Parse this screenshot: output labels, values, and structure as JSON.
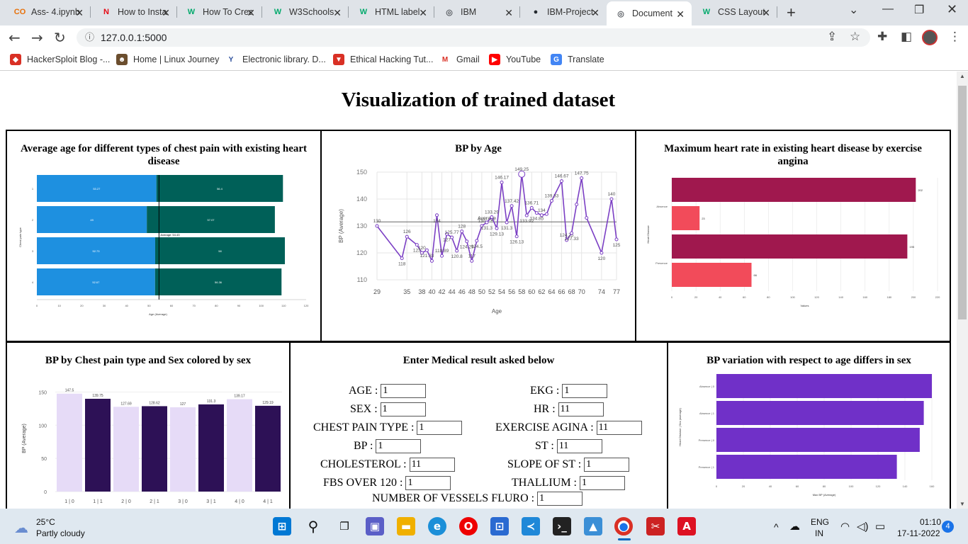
{
  "browser": {
    "tabs": [
      {
        "title": "Ass- 4.ipynb",
        "icon": "colab-icon",
        "color": "#e8710a",
        "glyph": "CO"
      },
      {
        "title": "How to Install",
        "icon": "netflix-icon",
        "color": "#e50914",
        "glyph": "N"
      },
      {
        "title": "How To Create",
        "icon": "w3schools-icon",
        "color": "#04aa6d",
        "glyph": "W"
      },
      {
        "title": "W3Schools",
        "icon": "w3schools-icon",
        "color": "#04aa6d",
        "glyph": "W"
      },
      {
        "title": "HTML label",
        "icon": "w3schools-icon",
        "color": "#04aa6d",
        "glyph": "W"
      },
      {
        "title": "IBM",
        "icon": "globe-icon",
        "color": "#5f6368",
        "glyph": "◎"
      },
      {
        "title": "IBM-Project",
        "icon": "github-icon",
        "color": "#24292f",
        "glyph": "●"
      },
      {
        "title": "Document",
        "icon": "globe-icon",
        "color": "#5f6368",
        "glyph": "◎"
      },
      {
        "title": "CSS Layout",
        "icon": "w3schools-icon",
        "color": "#04aa6d",
        "glyph": "W"
      }
    ],
    "active_tab": 7,
    "url": "127.0.0.1:5000",
    "bookmarks": [
      {
        "label": "HackerSploit Blog -...",
        "color": "#d93025",
        "glyph": "◆"
      },
      {
        "label": "Home | Linux Journey",
        "color": "#6b4e2e",
        "glyph": "☻"
      },
      {
        "label": "Electronic library. D...",
        "color": "#ffffff",
        "glyph": "Y"
      },
      {
        "label": "Ethical Hacking Tut...",
        "color": "#d93025",
        "glyph": "▼"
      },
      {
        "label": "Gmail",
        "color": "#ffffff",
        "glyph": "M"
      },
      {
        "label": "YouTube",
        "color": "#ff0000",
        "glyph": "▶"
      },
      {
        "label": "Translate",
        "color": "#4285f4",
        "glyph": "G"
      }
    ]
  },
  "page": {
    "title": "Visualization of trained dataset",
    "form_title": "Enter Medical result asked below",
    "form": {
      "age_label": "AGE :",
      "age": "1",
      "sex_label": "SEX :",
      "sex": "1",
      "cp_label": "CHEST PAIN TYPE :",
      "cp": "1",
      "bp_label": "BP :",
      "bp": "1",
      "chol_label": "CHOLESTEROL :",
      "chol": "11",
      "fbs_label": "FBS OVER 120 :",
      "fbs": "1",
      "ekg_label": "EKG :",
      "ekg": "1",
      "hr_label": "HR :",
      "hr": "11",
      "ea_label": "EXERCISE AGINA :",
      "ea": "11",
      "st_label": "ST :",
      "st": "11",
      "slope_label": "SLOPE OF ST :",
      "slope": "1",
      "thal_label": "THALLIUM :",
      "thal": "1",
      "vessels_label": "NUMBER OF VESSELS FLURO :",
      "vessels": "1"
    }
  },
  "chart_data": [
    {
      "type": "bar",
      "orientation": "horizontal",
      "stacked": true,
      "title": "Average age for different types of chest pain with existing heart disease",
      "ylabel": "Chest pain type",
      "xlabel": "Age (Average)",
      "categories": [
        "1",
        "2",
        "3",
        "4"
      ],
      "series": [
        {
          "name": "Absence",
          "color": "#1e90e0",
          "values": [
            53.27,
            49,
            52.73,
            52.67
          ]
        },
        {
          "name": "Presence",
          "color": "#006058",
          "values": [
            56.4,
            57.07,
            57.8,
            56.36
          ]
        }
      ],
      "value_labels": [
        [
          "53.27",
          "56.4"
        ],
        [
          "49",
          "57.07"
        ],
        [
          "52.73",
          "58"
        ],
        [
          "52.67",
          "56.36"
        ]
      ],
      "reference_line": {
        "label": "Average: 54.43",
        "value": 54.43
      },
      "xlim": [
        0,
        120
      ],
      "x_ticks": [
        "0",
        "10",
        "20",
        "30",
        "40",
        "50",
        "60",
        "70",
        "80",
        "90",
        "100",
        "110",
        "120"
      ]
    },
    {
      "type": "line",
      "title": "BP by Age",
      "xlabel": "Age",
      "ylabel": "BP (Average)",
      "color": "#7b3fc4",
      "ylim": [
        110,
        150
      ],
      "y_ticks": [
        110,
        120,
        130,
        140,
        150
      ],
      "x_tick_labels": [
        "29",
        "35",
        "38",
        "40",
        "42",
        "44",
        "46",
        "48",
        "50",
        "52",
        "54",
        "56",
        "58",
        "60",
        "62",
        "64",
        "66",
        "68",
        "70",
        "74",
        "77"
      ],
      "points": [
        {
          "x": 29,
          "y": 130,
          "label": "130"
        },
        {
          "x": 34,
          "y": 118,
          "label": "118"
        },
        {
          "x": 35,
          "y": 126,
          "label": "126"
        },
        {
          "x": 37,
          "y": 123,
          "label": "123"
        },
        {
          "x": 38,
          "y": 120,
          "label": "120"
        },
        {
          "x": 39,
          "y": 121,
          "label": "121.33"
        },
        {
          "x": 40,
          "y": 117,
          "label": ""
        },
        {
          "x": 41,
          "y": 134,
          "label": "134"
        },
        {
          "x": 42,
          "y": 118.89,
          "label": "118.89"
        },
        {
          "x": 43,
          "y": 127,
          "label": "127"
        },
        {
          "x": 44,
          "y": 125.77,
          "label": "125.77"
        },
        {
          "x": 45,
          "y": 120.8,
          "label": "120.8"
        },
        {
          "x": 46,
          "y": 128,
          "label": "128"
        },
        {
          "x": 47,
          "y": 124.29,
          "label": "124.29"
        },
        {
          "x": 48,
          "y": 117,
          "label": "117"
        },
        {
          "x": 49,
          "y": 124.5,
          "label": "124.5"
        },
        {
          "x": 50,
          "y": 130,
          "label": "130"
        },
        {
          "x": 51,
          "y": 131.3,
          "label": "131.3"
        },
        {
          "x": 52,
          "y": 133.29,
          "label": "133.29"
        },
        {
          "x": 53,
          "y": 129.13,
          "label": "129.13"
        },
        {
          "x": 54,
          "y": 146.17,
          "label": "146.17"
        },
        {
          "x": 55,
          "y": 131.3,
          "label": "131.3"
        },
        {
          "x": 56,
          "y": 137.42,
          "label": "137.42"
        },
        {
          "x": 57,
          "y": 126.13,
          "label": "126.13"
        },
        {
          "x": 58,
          "y": 149.25,
          "label": "149.25"
        },
        {
          "x": 59,
          "y": 133.92,
          "label": "133.92"
        },
        {
          "x": 60,
          "y": 136.71,
          "label": "136.71"
        },
        {
          "x": 61,
          "y": 134.85,
          "label": "134.85"
        },
        {
          "x": 62,
          "y": 134,
          "label": "134"
        },
        {
          "x": 63,
          "y": 134.4,
          "label": ""
        },
        {
          "x": 64,
          "y": 139.33,
          "label": "139.33"
        },
        {
          "x": 66,
          "y": 146.67,
          "label": "146.67"
        },
        {
          "x": 67,
          "y": 124.75,
          "label": "124.75"
        },
        {
          "x": 68,
          "y": 127.33,
          "label": "127.33"
        },
        {
          "x": 69,
          "y": 138,
          "label": ""
        },
        {
          "x": 70,
          "y": 147.75,
          "label": "147.75"
        },
        {
          "x": 71,
          "y": 133,
          "label": ""
        },
        {
          "x": 74,
          "y": 120,
          "label": "120"
        },
        {
          "x": 76,
          "y": 140,
          "label": "140"
        },
        {
          "x": 77,
          "y": 125,
          "label": "125"
        }
      ],
      "reference_line": {
        "label": "Average",
        "value": 131.5
      }
    },
    {
      "type": "bar",
      "orientation": "horizontal",
      "title": "Maximum heart rate in existing heart disease by exercise angina",
      "ylabel": "Heart Disease",
      "xlabel": "Values",
      "categories": [
        "Absence",
        "Presence"
      ],
      "series": [
        {
          "name": "Max HR",
          "color": "#a0184e",
          "values": [
            202,
            195
          ]
        },
        {
          "name": "Exercise angina",
          "color": "#f24b5a",
          "values": [
            23,
            66
          ]
        }
      ],
      "value_labels": [
        [
          "202",
          "23"
        ],
        [
          "195",
          "66"
        ]
      ],
      "xlim": [
        0,
        220
      ],
      "x_ticks": [
        "0",
        "20",
        "40",
        "60",
        "80",
        "100",
        "120",
        "140",
        "160",
        "180",
        "200",
        "220"
      ]
    },
    {
      "type": "bar",
      "title": "BP by Chest pain type and Sex colored by sex",
      "ylabel": "BP (Average)",
      "categories": [
        "1 | 0",
        "1 | 1",
        "2 | 0",
        "2 | 1",
        "3 | 0",
        "3 | 1",
        "4 | 0",
        "4 | 1"
      ],
      "values": [
        147.5,
        139.75,
        127.69,
        128.62,
        127,
        131.3,
        139.17,
        129.19
      ],
      "value_labels": [
        "147.5",
        "139.75",
        "127.69",
        "128.62",
        "127",
        "131.3",
        "139.17",
        "129.19"
      ],
      "colors": [
        "#e6dbf7",
        "#2d1156",
        "#e6dbf7",
        "#2d1156",
        "#e6dbf7",
        "#2d1156",
        "#e6dbf7",
        "#2d1156"
      ],
      "ylim": [
        0,
        160
      ],
      "y_ticks": [
        0,
        50,
        100,
        150
      ]
    },
    {
      "type": "bar",
      "orientation": "horizontal",
      "title": "BP variation with respect to age differs in sex",
      "ylabel": "Heart Disease | Sex (average)",
      "xlabel": "Max BP (Average)",
      "color": "#7030c8",
      "categories": [
        "Absence | 0",
        "Absence | 1",
        "Presence | 0",
        "Presence | 1"
      ],
      "values": [
        160,
        154,
        151,
        134
      ],
      "xlim": [
        0,
        160
      ],
      "x_ticks": [
        "0",
        "20",
        "40",
        "60",
        "80",
        "100",
        "120",
        "140",
        "160"
      ]
    }
  ],
  "taskbar": {
    "weather_temp": "25°C",
    "weather_desc": "Partly cloudy",
    "lang": "ENG",
    "region": "IN",
    "time": "01:10",
    "date": "17-11-2022",
    "notifications": "4"
  }
}
